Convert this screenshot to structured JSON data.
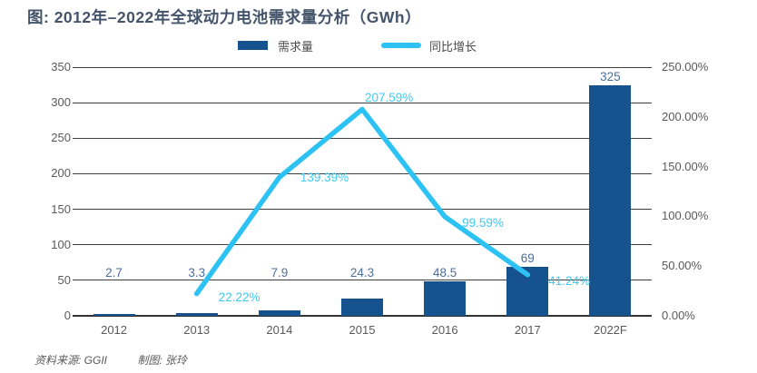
{
  "title": "图: 2012年–2022年全球动力电池需求量分析（GWh）",
  "legend": [
    {
      "label": "需求量",
      "type": "bar"
    },
    {
      "label": "同比增长",
      "type": "line"
    }
  ],
  "footer": {
    "source": "资料来源: GGII",
    "maker": "制图: 张玲"
  },
  "colors": {
    "bar": "#16528d",
    "line": "#2cc3f4",
    "value_label": "#4b6e9f",
    "pct_label": "#3fc9f4",
    "axis_text": "#595959",
    "title": "#44546a",
    "gridline": "#404040"
  },
  "chart_data": {
    "type": "bar",
    "subtype": "bar+line combo, dual axis",
    "title": "图: 2012年–2022年全球动力电池需求量分析（GWh）",
    "categories": [
      "2012",
      "2013",
      "2014",
      "2015",
      "2016",
      "2017",
      "2022F"
    ],
    "series": [
      {
        "name": "需求量",
        "type": "bar",
        "axis": "left",
        "values": [
          2.7,
          3.3,
          7.9,
          24.3,
          48.5,
          69,
          325
        ],
        "labels": [
          "2.7",
          "3.3",
          "7.9",
          "24.3",
          "48.5",
          "69",
          "325"
        ]
      },
      {
        "name": "同比增长",
        "type": "line",
        "axis": "right",
        "values": [
          null,
          22.22,
          139.39,
          207.59,
          99.59,
          41.24,
          null
        ],
        "labels": [
          null,
          "22.22%",
          "139.39%",
          "207.59%",
          "99.59%",
          "41.24%",
          null
        ]
      }
    ],
    "left_axis": {
      "min": 0,
      "max": 350,
      "ticks": [
        "350",
        "300",
        "250",
        "200",
        "150",
        "100",
        "50",
        "0"
      ]
    },
    "right_axis": {
      "min": 0,
      "max": 250,
      "ticks": [
        "250.00%",
        "200.00%",
        "150.00%",
        "100.00%",
        "50.00%",
        "0.00%"
      ]
    },
    "grid": true,
    "legend_position": "top-center"
  }
}
